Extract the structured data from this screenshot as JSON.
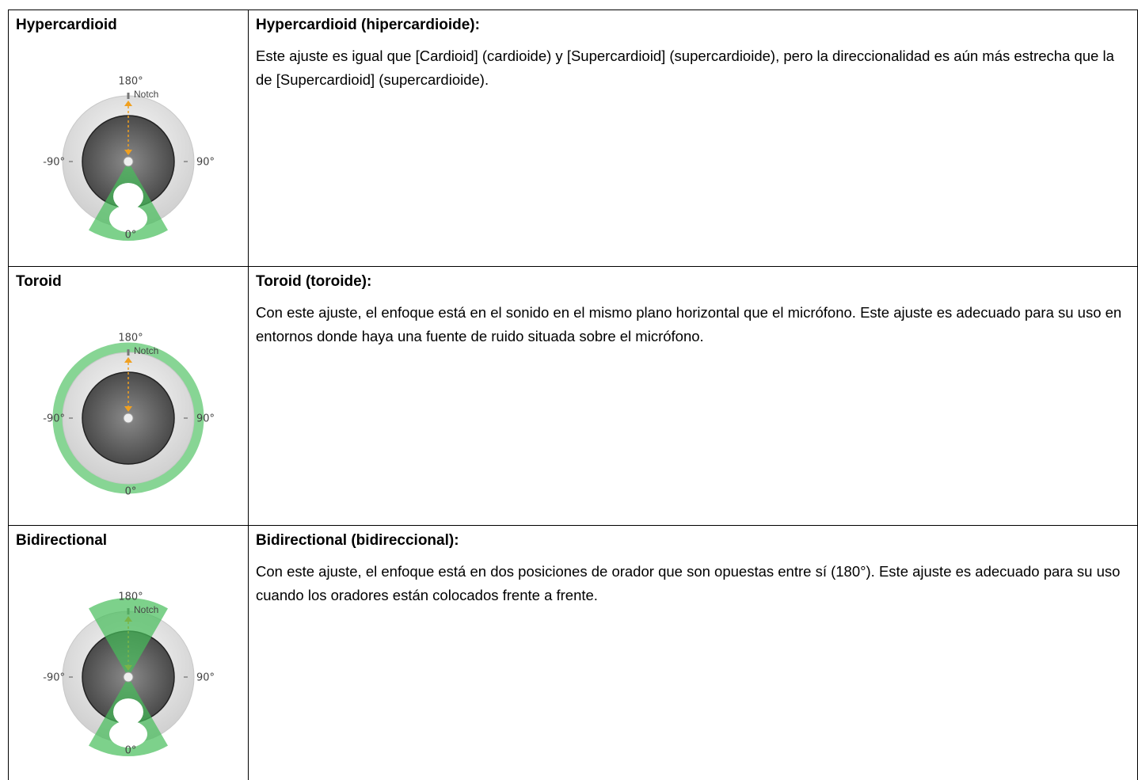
{
  "rows": [
    {
      "name": "Hypercardioid",
      "diagram": {
        "top": "180°",
        "notch": "Notch",
        "left": "-90°",
        "right": "90°",
        "bottom": "0°"
      },
      "heading": "Hypercardioid (hipercardioide):",
      "text": "Este ajuste es igual que [Cardioid] (cardioide) y [Supercardioid] (supercardioide), pero la direccionalidad es aún más estrecha que la de [Supercardioid] (supercardioide)."
    },
    {
      "name": "Toroid",
      "diagram": {
        "top": "180°",
        "notch": "Notch",
        "left": "-90°",
        "right": "90°",
        "bottom": "0°"
      },
      "heading": "Toroid (toroide):",
      "text": "Con este ajuste, el enfoque está en el sonido en el mismo plano horizontal que el micrófono. Este ajuste es adecuado para su uso en entornos donde haya una fuente de ruido situada sobre el micrófono."
    },
    {
      "name": "Bidirectional",
      "diagram": {
        "top": "180°",
        "notch": "Notch",
        "left": "-90°",
        "right": "90°",
        "bottom": "0°"
      },
      "heading": "Bidirectional (bidireccional):",
      "text": "Con este ajuste, el enfoque está en dos posiciones de orador que son opuestas entre sí (180°). Este ajuste es adecuado para su uso cuando los oradores están colocados frente a frente."
    }
  ]
}
